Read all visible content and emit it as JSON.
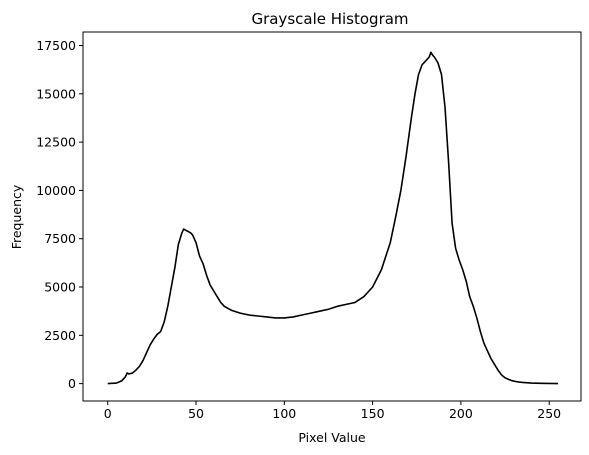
{
  "chart_data": {
    "type": "line",
    "title": "Grayscale Histogram",
    "xlabel": "Pixel Value",
    "ylabel": "Frequency",
    "xlim": [
      -14,
      268
    ],
    "ylim": [
      -900,
      18200
    ],
    "xticks": [
      0,
      50,
      100,
      150,
      200,
      250
    ],
    "yticks": [
      0,
      2500,
      5000,
      7500,
      10000,
      12500,
      15000,
      17500
    ],
    "grid": false,
    "legend": "none",
    "series": [
      {
        "color": "#000000",
        "x": [
          0,
          5,
          8,
          10,
          11,
          12,
          14,
          16,
          18,
          20,
          22,
          24,
          26,
          28,
          30,
          32,
          34,
          36,
          38,
          40,
          42,
          43,
          44,
          45,
          46,
          47,
          48,
          50,
          52,
          54,
          56,
          58,
          60,
          62,
          64,
          66,
          68,
          70,
          75,
          80,
          85,
          90,
          95,
          100,
          105,
          110,
          115,
          120,
          125,
          130,
          135,
          140,
          145,
          150,
          155,
          160,
          163,
          166,
          169,
          172,
          174,
          176,
          178,
          180,
          182,
          183,
          184,
          185,
          187,
          189,
          191,
          193,
          195,
          197,
          199,
          201,
          203,
          205,
          207,
          209,
          211,
          213,
          215,
          217,
          219,
          221,
          223,
          225,
          227,
          229,
          231,
          233,
          235,
          240,
          245,
          250,
          255
        ],
        "y": [
          0,
          30,
          150,
          350,
          550,
          500,
          550,
          700,
          900,
          1200,
          1600,
          2000,
          2300,
          2550,
          2700,
          3200,
          4000,
          5000,
          6000,
          7200,
          7800,
          8000,
          7950,
          7900,
          7850,
          7800,
          7700,
          7300,
          6600,
          6200,
          5600,
          5100,
          4800,
          4500,
          4200,
          4000,
          3900,
          3800,
          3650,
          3550,
          3500,
          3450,
          3400,
          3400,
          3450,
          3550,
          3650,
          3750,
          3850,
          4000,
          4100,
          4200,
          4500,
          5000,
          5900,
          7300,
          8600,
          10000,
          11800,
          13800,
          15000,
          16000,
          16500,
          16700,
          16900,
          17150,
          17000,
          16900,
          16600,
          16000,
          14300,
          11500,
          8300,
          7000,
          6400,
          5900,
          5300,
          4500,
          4000,
          3400,
          2700,
          2100,
          1700,
          1300,
          1000,
          700,
          450,
          300,
          220,
          150,
          110,
          80,
          60,
          30,
          15,
          8,
          3
        ]
      }
    ]
  }
}
